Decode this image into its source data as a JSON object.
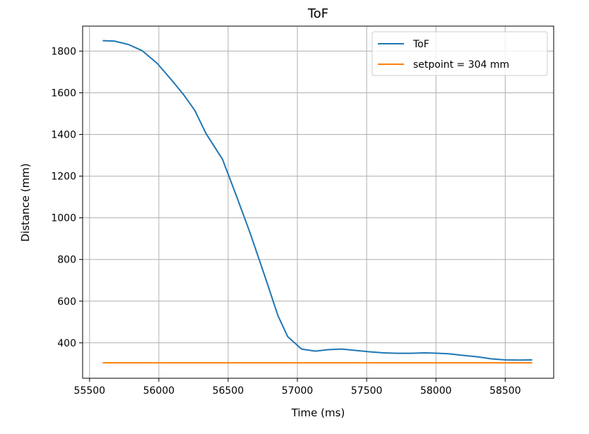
{
  "chart_data": {
    "type": "line",
    "title": "ToF",
    "xlabel": "Time (ms)",
    "ylabel": "Distance (mm)",
    "xlim": [
      55450,
      58850
    ],
    "ylim": [
      230,
      1920
    ],
    "xticks": [
      55500,
      56000,
      56500,
      57000,
      57500,
      58000,
      58500
    ],
    "yticks": [
      400,
      600,
      800,
      1000,
      1200,
      1400,
      1600,
      1800
    ],
    "grid": true,
    "legend_position": "top-right",
    "series": [
      {
        "name": "ToF",
        "color": "#1f77b4",
        "x": [
          55600,
          55680,
          55780,
          55880,
          55990,
          56100,
          56180,
          56260,
          56340,
          56460,
          56560,
          56660,
          56760,
          56860,
          56930,
          57030,
          57130,
          57220,
          57320,
          57410,
          57520,
          57620,
          57720,
          57820,
          57920,
          58020,
          58100,
          58180,
          58300,
          58400,
          58500,
          58600,
          58690
        ],
        "y": [
          1850,
          1848,
          1832,
          1802,
          1740,
          1655,
          1590,
          1515,
          1405,
          1280,
          1105,
          925,
          730,
          530,
          430,
          370,
          360,
          367,
          370,
          364,
          357,
          352,
          350,
          350,
          352,
          350,
          347,
          341,
          333,
          323,
          318,
          317,
          318
        ]
      },
      {
        "name": "setpoint = 304 mm",
        "color": "#ff7f0e",
        "x": [
          55600,
          58690
        ],
        "y": [
          304,
          304
        ]
      }
    ]
  }
}
